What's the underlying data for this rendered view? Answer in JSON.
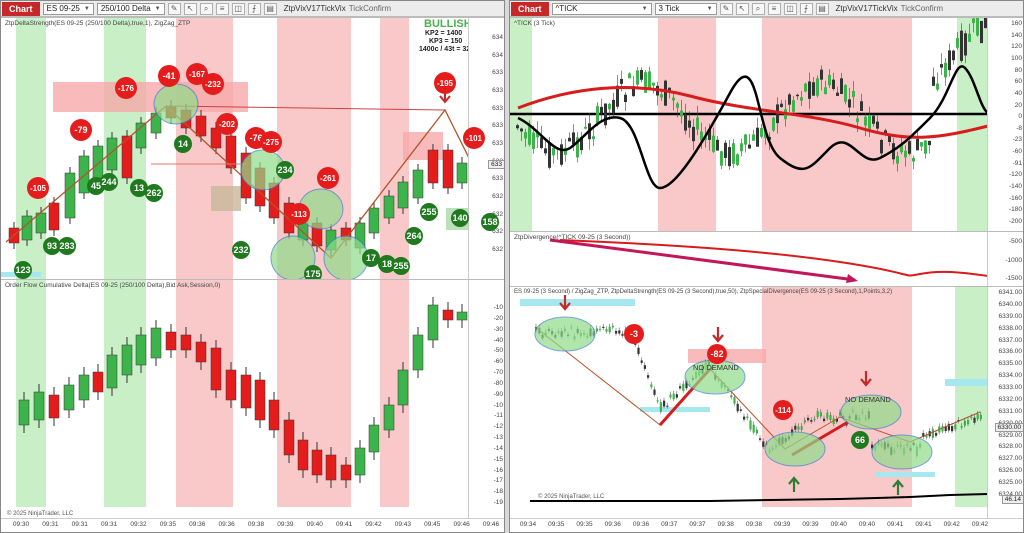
{
  "left": {
    "tag": "Chart",
    "instrument": "ES 09-25",
    "interval": "250/100 Delta",
    "title_text": "ZtpVixV17TickVix",
    "mode_text": "TickConfirm",
    "top_panel_title": "ZtpDeltaStrength(ES 09-25 (250/100 Delta),true,1), ZigZag_ZTP",
    "bottom_panel_title": "Order Flow Cumulative Delta(ES 09-25 (250/100 Delta),Bid Ask,Session,0)",
    "bullish": "BULLISH",
    "info_line1": "KP2 = 1400",
    "info_line2": "KP3 = 150",
    "info_line3": "1400c / 43t = 32",
    "copyright": "© 2025 NinjaTrader, LLC",
    "price_ticks": [
      "634",
      "634",
      "633",
      "633",
      "633",
      "633",
      "633",
      "633",
      "633",
      "632",
      "632",
      "632",
      "632"
    ],
    "delta_ticks": [
      "-10",
      "-20",
      "-30",
      "-40",
      "-50",
      "-60",
      "-70",
      "-80",
      "-90",
      "-10",
      "-11",
      "-12",
      "-13",
      "-14",
      "-15",
      "-16",
      "-17",
      "-18",
      "-19"
    ],
    "x_ticks": [
      "09:30",
      "09:31",
      "09:31",
      "09:31",
      "09:32",
      "09:35",
      "09:36",
      "09:36",
      "09:38",
      "09:39",
      "09:40",
      "09:41",
      "09:42",
      "09:43",
      "09:45",
      "09:46",
      "09:46"
    ],
    "red_badges": [
      "-105",
      "-79",
      "-176",
      "-41",
      "-167",
      "-232",
      "-202",
      "-76",
      "-275",
      "-261",
      "-113",
      "-195",
      "-101"
    ],
    "green_badges": [
      "123",
      "93",
      "283",
      "45",
      "244",
      "13",
      "262",
      "14",
      "232",
      "234",
      "175",
      "17",
      "18",
      "255",
      "264",
      "255",
      "140",
      "158"
    ]
  },
  "right": {
    "tag": "Chart",
    "instrument": "^TICK",
    "interval": "3 Tick",
    "title_text": "ZtpVixV17TickVix",
    "mode_text": "TickConfirm",
    "tick_panel_title": "^TICK (3 Tick)",
    "mid_panel_title": "ZtpDivergence(^TICK 09-25 (3 Second))",
    "bottom_panel_title": "ES 09-25 (3 Second) / ZigZag_ZTP, ZtpDeltaStrength(ES 09-25 (3 Second),true,50), ZtpSpecialDivergence(ES 09-25 (3 Second),1,Points,3,2)",
    "copyright": "© 2025 NinjaTrader, LLC",
    "tick_axis": [
      "160",
      "140",
      "120",
      "100",
      "80",
      "60",
      "40",
      "20",
      "0",
      "-8",
      "-23",
      "-60",
      "-91",
      "-120",
      "-140",
      "-160",
      "-180",
      "-200"
    ],
    "mid_axis": [
      "-500",
      "-1000",
      "-1500"
    ],
    "price_axis": [
      "6341.00",
      "6340.00",
      "6339.00",
      "6338.00",
      "6337.00",
      "6336.00",
      "6335.00",
      "6334.00",
      "6333.00",
      "6332.00",
      "6331.00",
      "6330.00",
      "6329.00",
      "6328.00",
      "6327.00",
      "6326.00",
      "6325.00",
      "6324.00"
    ],
    "last_price": "6330.00",
    "bottom_value": "46.14",
    "x_ticks": [
      "09:34",
      "09:35",
      "09:35",
      "09:36",
      "09:36",
      "09:37",
      "09:37",
      "09:38",
      "09:38",
      "09:39",
      "09:39",
      "09:40",
      "09:40",
      "09:41",
      "09:41",
      "09:42",
      "09:42"
    ],
    "no_demand_1": "NO DEMAND",
    "no_demand_2": "NO DEMAND",
    "red_badges": [
      "-3",
      "-82",
      "-114"
    ],
    "green_badges": [
      "66"
    ]
  }
}
